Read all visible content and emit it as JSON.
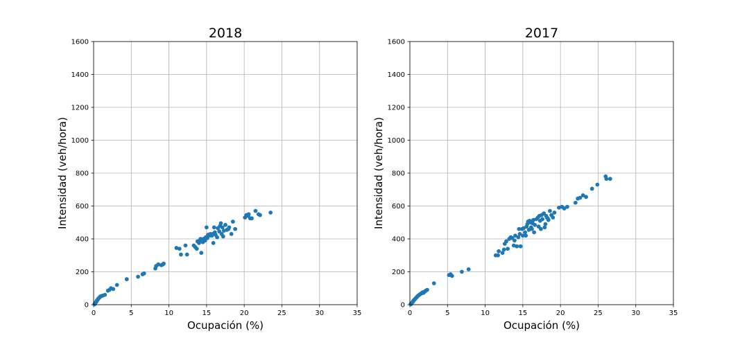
{
  "chart_data": [
    {
      "type": "scatter",
      "title": "2018",
      "xlabel": "Ocupación (%)",
      "ylabel": "Intensidad (veh/hora)",
      "xlim": [
        0,
        35
      ],
      "ylim": [
        0,
        1600
      ],
      "xticks": [
        "0",
        "5",
        "10",
        "15",
        "20",
        "25",
        "30",
        "35"
      ],
      "yticks": [
        "0",
        "200",
        "400",
        "600",
        "800",
        "1000",
        "1200",
        "1400",
        "1600"
      ],
      "grid": true,
      "color": "#1f77b4",
      "series": [
        {
          "points": [
            [
              0.1,
              2
            ],
            [
              0.15,
              5
            ],
            [
              0.2,
              8
            ],
            [
              0.25,
              12
            ],
            [
              0.3,
              15
            ],
            [
              0.35,
              18
            ],
            [
              0.4,
              22
            ],
            [
              0.45,
              25
            ],
            [
              0.5,
              28
            ],
            [
              0.55,
              32
            ],
            [
              0.6,
              35
            ],
            [
              0.7,
              40
            ],
            [
              0.8,
              45
            ],
            [
              0.9,
              50
            ],
            [
              1.0,
              52
            ],
            [
              1.2,
              55
            ],
            [
              1.5,
              60
            ],
            [
              1.9,
              85
            ],
            [
              2.1,
              90
            ],
            [
              2.3,
              100
            ],
            [
              2.6,
              95
            ],
            [
              3.1,
              120
            ],
            [
              4.4,
              155
            ],
            [
              5.9,
              170
            ],
            [
              6.5,
              185
            ],
            [
              6.7,
              190
            ],
            [
              8.2,
              220
            ],
            [
              8.3,
              235
            ],
            [
              8.6,
              245
            ],
            [
              9.0,
              240
            ],
            [
              9.2,
              245
            ],
            [
              9.3,
              250
            ],
            [
              11.0,
              345
            ],
            [
              11.4,
              340
            ],
            [
              11.6,
              305
            ],
            [
              12.2,
              360
            ],
            [
              12.4,
              305
            ],
            [
              13.3,
              360
            ],
            [
              13.5,
              350
            ],
            [
              13.7,
              340
            ],
            [
              13.8,
              385
            ],
            [
              14.0,
              375
            ],
            [
              14.1,
              390
            ],
            [
              14.2,
              400
            ],
            [
              14.3,
              315
            ],
            [
              14.5,
              380
            ],
            [
              14.6,
              400
            ],
            [
              14.8,
              390
            ],
            [
              14.9,
              410
            ],
            [
              15.0,
              470
            ],
            [
              15.1,
              405
            ],
            [
              15.2,
              425
            ],
            [
              15.4,
              420
            ],
            [
              15.5,
              430
            ],
            [
              15.7,
              420
            ],
            [
              15.8,
              430
            ],
            [
              15.9,
              375
            ],
            [
              16.0,
              470
            ],
            [
              16.1,
              440
            ],
            [
              16.2,
              425
            ],
            [
              16.4,
              410
            ],
            [
              16.5,
              465
            ],
            [
              16.7,
              445
            ],
            [
              16.8,
              480
            ],
            [
              16.9,
              495
            ],
            [
              17.0,
              430
            ],
            [
              17.1,
              470
            ],
            [
              17.2,
              415
            ],
            [
              17.3,
              450
            ],
            [
              17.5,
              485
            ],
            [
              17.7,
              455
            ],
            [
              17.9,
              460
            ],
            [
              18.0,
              470
            ],
            [
              18.3,
              430
            ],
            [
              18.5,
              505
            ],
            [
              18.8,
              460
            ],
            [
              20.1,
              530
            ],
            [
              20.3,
              545
            ],
            [
              20.5,
              540
            ],
            [
              20.6,
              550
            ],
            [
              20.8,
              525
            ],
            [
              21.0,
              525
            ],
            [
              21.5,
              570
            ],
            [
              21.9,
              550
            ],
            [
              22.1,
              545
            ],
            [
              23.5,
              560
            ]
          ]
        }
      ]
    },
    {
      "type": "scatter",
      "title": "2017",
      "xlabel": "Ocupación (%)",
      "ylabel": "Intensidad (veh/hora)",
      "xlim": [
        0,
        35
      ],
      "ylim": [
        0,
        1600
      ],
      "xticks": [
        "0",
        "5",
        "10",
        "15",
        "20",
        "25",
        "30",
        "35"
      ],
      "yticks": [
        "0",
        "200",
        "400",
        "600",
        "800",
        "1000",
        "1200",
        "1400",
        "1600"
      ],
      "grid": true,
      "color": "#1f77b4",
      "series": [
        {
          "points": [
            [
              0.1,
              2
            ],
            [
              0.15,
              5
            ],
            [
              0.2,
              8
            ],
            [
              0.3,
              12
            ],
            [
              0.35,
              15
            ],
            [
              0.4,
              20
            ],
            [
              0.5,
              25
            ],
            [
              0.55,
              28
            ],
            [
              0.6,
              30
            ],
            [
              0.7,
              35
            ],
            [
              0.8,
              40
            ],
            [
              0.9,
              45
            ],
            [
              1.0,
              50
            ],
            [
              1.1,
              55
            ],
            [
              1.2,
              58
            ],
            [
              1.3,
              62
            ],
            [
              1.4,
              65
            ],
            [
              1.5,
              68
            ],
            [
              1.6,
              70
            ],
            [
              1.7,
              75
            ],
            [
              1.8,
              72
            ],
            [
              1.9,
              78
            ],
            [
              2.0,
              80
            ],
            [
              2.1,
              85
            ],
            [
              2.3,
              90
            ],
            [
              3.2,
              130
            ],
            [
              5.2,
              180
            ],
            [
              5.4,
              185
            ],
            [
              5.6,
              175
            ],
            [
              6.9,
              200
            ],
            [
              7.8,
              215
            ],
            [
              11.4,
              300
            ],
            [
              11.7,
              300
            ],
            [
              11.8,
              325
            ],
            [
              12.3,
              315
            ],
            [
              12.5,
              335
            ],
            [
              12.6,
              370
            ],
            [
              12.8,
              385
            ],
            [
              13.0,
              340
            ],
            [
              13.2,
              400
            ],
            [
              13.4,
              410
            ],
            [
              13.6,
              405
            ],
            [
              13.8,
              360
            ],
            [
              13.9,
              390
            ],
            [
              14.0,
              420
            ],
            [
              14.2,
              355
            ],
            [
              14.4,
              410
            ],
            [
              14.5,
              460
            ],
            [
              14.6,
              430
            ],
            [
              14.7,
              355
            ],
            [
              14.9,
              460
            ],
            [
              15.0,
              420
            ],
            [
              15.1,
              465
            ],
            [
              15.3,
              440
            ],
            [
              15.4,
              420
            ],
            [
              15.5,
              475
            ],
            [
              15.6,
              490
            ],
            [
              15.7,
              505
            ],
            [
              15.8,
              455
            ],
            [
              15.9,
              510
            ],
            [
              16.0,
              500
            ],
            [
              16.1,
              470
            ],
            [
              16.2,
              460
            ],
            [
              16.3,
              495
            ],
            [
              16.4,
              515
            ],
            [
              16.5,
              440
            ],
            [
              16.6,
              485
            ],
            [
              16.8,
              520
            ],
            [
              17.0,
              530
            ],
            [
              17.1,
              475
            ],
            [
              17.2,
              540
            ],
            [
              17.3,
              510
            ],
            [
              17.4,
              460
            ],
            [
              17.5,
              545
            ],
            [
              17.6,
              520
            ],
            [
              17.8,
              555
            ],
            [
              17.9,
              470
            ],
            [
              18.0,
              490
            ],
            [
              18.1,
              540
            ],
            [
              18.2,
              530
            ],
            [
              18.3,
              525
            ],
            [
              18.4,
              515
            ],
            [
              18.6,
              570
            ],
            [
              18.8,
              545
            ],
            [
              19.0,
              530
            ],
            [
              19.2,
              560
            ],
            [
              19.8,
              590
            ],
            [
              20.2,
              595
            ],
            [
              20.5,
              585
            ],
            [
              20.9,
              595
            ],
            [
              22.0,
              620
            ],
            [
              22.3,
              645
            ],
            [
              22.6,
              650
            ],
            [
              23.0,
              665
            ],
            [
              23.4,
              655
            ],
            [
              24.2,
              705
            ],
            [
              24.9,
              730
            ],
            [
              26.0,
              780
            ],
            [
              26.1,
              765
            ],
            [
              26.6,
              765
            ]
          ]
        }
      ]
    }
  ]
}
